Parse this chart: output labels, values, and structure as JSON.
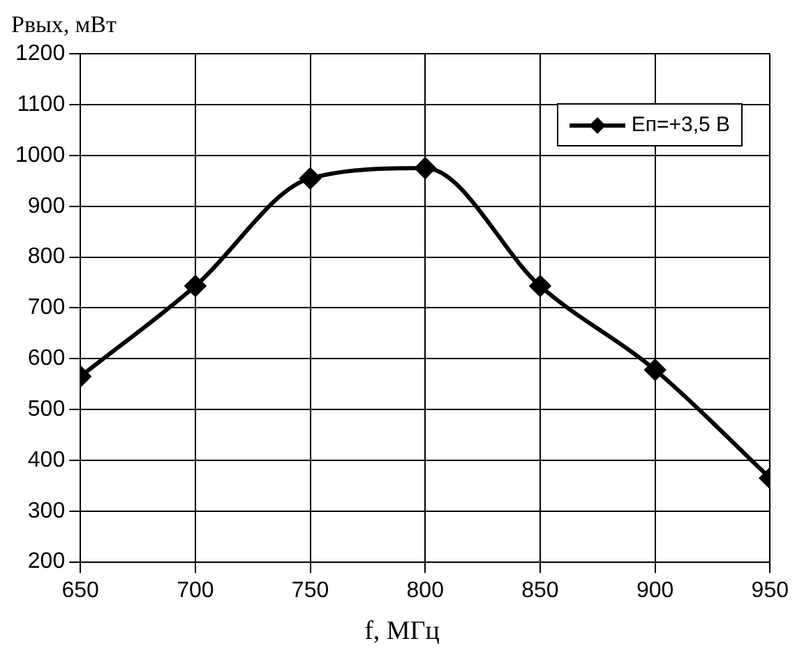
{
  "chart_data": {
    "type": "line",
    "xlabel": "f, МГц",
    "ylabel": "Рвых, мВт",
    "x": [
      650,
      700,
      750,
      800,
      850,
      900,
      950
    ],
    "series": [
      {
        "name": "Eп=+3,5 В",
        "color": "#000000",
        "values": [
          565,
          743,
          955,
          975,
          743,
          578,
          365
        ]
      }
    ],
    "xlim": [
      650,
      950
    ],
    "xticks": [
      650,
      700,
      750,
      800,
      850,
      900,
      950
    ],
    "ylim": [
      200,
      1200
    ],
    "yticks": [
      200,
      300,
      400,
      500,
      600,
      700,
      800,
      900,
      1000,
      1100,
      1200
    ],
    "grid": true,
    "legend": "top right",
    "marker": "diamond",
    "line_style": "solid"
  }
}
